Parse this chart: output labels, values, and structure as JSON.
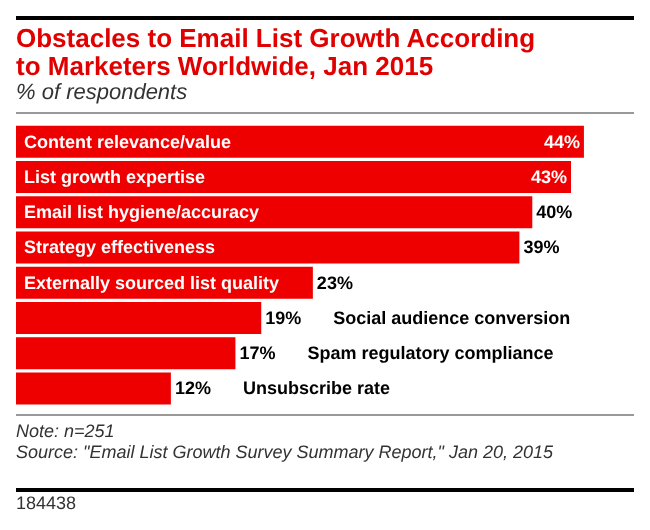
{
  "chart_data": {
    "type": "bar",
    "orientation": "horizontal",
    "title": "Obstacles to Email List Growth According to Marketers Worldwide, Jan 2015",
    "subtitle": "% of respondents",
    "categories": [
      "Content relevance/value",
      "List growth expertise",
      "Email list hygiene/accuracy",
      "Strategy effectiveness",
      "Externally sourced list quality",
      "Social audience conversion",
      "Spam regulatory compliance",
      "Unsubscribe rate"
    ],
    "values": [
      44,
      43,
      40,
      39,
      23,
      19,
      17,
      12
    ],
    "value_labels": [
      "44%",
      "43%",
      "40%",
      "39%",
      "23%",
      "19%",
      "17%",
      "12%"
    ],
    "color": "#ee0000",
    "annotations": [
      "Note: n=251",
      "Source: \"Email List Growth Survey Summary Report,\" Jan 20, 2015",
      "184438"
    ]
  }
}
